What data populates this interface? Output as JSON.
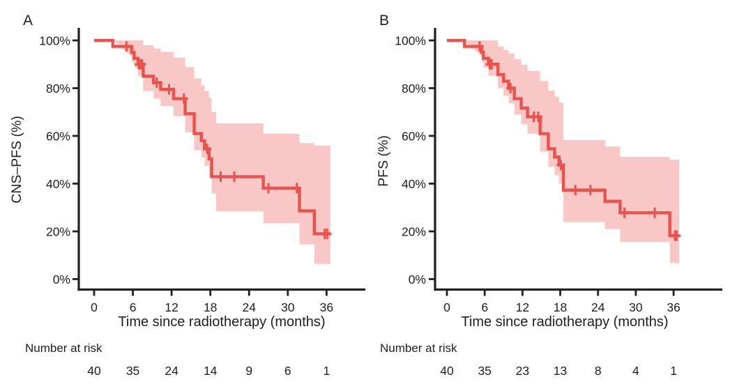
{
  "page": {
    "background": "#ffffff"
  },
  "colors": {
    "curve": "#E8534E",
    "band": "#F9C8C6",
    "axis": "#202020",
    "text": "#202020"
  },
  "panels": [
    {
      "label": "A",
      "y_axis_title": "CNS–PFS (%)",
      "x_axis_title": "Time since radiotherapy (months)",
      "risk_label": "Number at risk"
    },
    {
      "label": "B",
      "y_axis_title": "PFS (%)",
      "x_axis_title": "Time since radiotherapy (months)",
      "risk_label": "Number at risk"
    }
  ],
  "chart_data": [
    {
      "type": "line",
      "subtype": "kaplan-meier-step",
      "panel": "A",
      "title": "",
      "ylabel": "CNS–PFS (%)",
      "xlabel": "Time since radiotherapy (months)",
      "xlim": [
        0,
        42
      ],
      "ylim": [
        0,
        100
      ],
      "grid": false,
      "legend": "none",
      "x_ticks": [
        0,
        6,
        12,
        18,
        24,
        30,
        36
      ],
      "y_ticks": [
        {
          "value": 0,
          "label": "0%"
        },
        {
          "value": 20,
          "label": "20%"
        },
        {
          "value": 40,
          "label": "40%"
        },
        {
          "value": 60,
          "label": "60%"
        },
        {
          "value": 80,
          "label": "80%"
        },
        {
          "value": 100,
          "label": "100%"
        }
      ],
      "survival_steps": [
        [
          0,
          100
        ],
        [
          2.9,
          97.5
        ],
        [
          5.8,
          95
        ],
        [
          6.2,
          92.5
        ],
        [
          6.8,
          90
        ],
        [
          7.6,
          85
        ],
        [
          9.2,
          82.3
        ],
        [
          10.3,
          79.5
        ],
        [
          12.3,
          75.6
        ],
        [
          14.1,
          69.3
        ],
        [
          15.5,
          61
        ],
        [
          16.6,
          58
        ],
        [
          17.1,
          54.6
        ],
        [
          17.8,
          50.4
        ],
        [
          18.2,
          42.9
        ],
        [
          26.2,
          38.1
        ],
        [
          31.8,
          28.6
        ],
        [
          34.1,
          19
        ]
      ],
      "curve_end_time": 36.6,
      "censor_marks": [
        [
          5,
          97.5
        ],
        [
          6.9,
          90
        ],
        [
          7.15,
          90
        ],
        [
          7.4,
          90
        ],
        [
          9.7,
          82.3
        ],
        [
          11.6,
          79.5
        ],
        [
          13.9,
          75.6
        ],
        [
          17.5,
          54.6
        ],
        [
          19.6,
          42.9
        ],
        [
          21.7,
          42.9
        ],
        [
          27,
          38.1
        ],
        [
          31.4,
          38.1
        ],
        [
          35.7,
          19
        ],
        [
          36.1,
          19
        ]
      ],
      "confidence_band": [
        [
          2.9,
          93.4,
          100
        ],
        [
          5.8,
          91,
          100
        ],
        [
          6.2,
          88.6,
          100
        ],
        [
          6.8,
          85.2,
          100
        ],
        [
          7.6,
          78.8,
          98
        ],
        [
          9.2,
          75.6,
          96.6
        ],
        [
          10.3,
          72.5,
          95.2
        ],
        [
          12.3,
          68.3,
          92.8
        ],
        [
          14.1,
          61.5,
          88.8
        ],
        [
          15.5,
          54,
          84
        ],
        [
          16.6,
          51,
          81.2
        ],
        [
          17.1,
          47.5,
          78.8
        ],
        [
          17.8,
          43.2,
          75.8
        ],
        [
          18.2,
          35.8,
          70
        ],
        [
          18.9,
          28.4,
          65.3
        ],
        [
          26.2,
          23.4,
          60.9
        ],
        [
          31.8,
          14.6,
          57
        ],
        [
          34.1,
          6.4,
          56
        ]
      ],
      "number_at_risk": {
        "label": "Number at risk",
        "times": [
          0,
          6,
          12,
          18,
          24,
          30,
          36
        ],
        "counts": [
          40,
          35,
          24,
          14,
          9,
          6,
          1
        ]
      }
    },
    {
      "type": "line",
      "subtype": "kaplan-meier-step",
      "panel": "B",
      "title": "",
      "ylabel": "PFS (%)",
      "xlabel": "Time since radiotherapy (months)",
      "xlim": [
        0,
        42
      ],
      "ylim": [
        0,
        100
      ],
      "grid": false,
      "legend": "none",
      "x_ticks": [
        0,
        6,
        12,
        18,
        24,
        30,
        36
      ],
      "y_ticks": [
        {
          "value": 0,
          "label": "0%"
        },
        {
          "value": 20,
          "label": "20%"
        },
        {
          "value": 40,
          "label": "40%"
        },
        {
          "value": 60,
          "label": "60%"
        },
        {
          "value": 80,
          "label": "80%"
        },
        {
          "value": 100,
          "label": "100%"
        }
      ],
      "survival_steps": [
        [
          0,
          100
        ],
        [
          2.8,
          97.5
        ],
        [
          5.5,
          95
        ],
        [
          5.8,
          92.5
        ],
        [
          6.6,
          90
        ],
        [
          8.1,
          85.7
        ],
        [
          9,
          82.9
        ],
        [
          9.8,
          80
        ],
        [
          10.7,
          75.6
        ],
        [
          11.8,
          71.7
        ],
        [
          12.8,
          68
        ],
        [
          14.8,
          60.9
        ],
        [
          16.1,
          54.6
        ],
        [
          17.1,
          51.2
        ],
        [
          17.8,
          47.8
        ],
        [
          18.5,
          37.3
        ],
        [
          25.1,
          32.6
        ],
        [
          27.5,
          27.8
        ],
        [
          35.4,
          18.2
        ]
      ],
      "curve_end_time": 36.9,
      "censor_marks": [
        [
          5.2,
          97.5
        ],
        [
          6.8,
          90
        ],
        [
          7.1,
          90
        ],
        [
          10.1,
          80
        ],
        [
          13.8,
          68
        ],
        [
          14.5,
          68
        ],
        [
          18.1,
          47.8
        ],
        [
          20.4,
          37.3
        ],
        [
          22.8,
          37.3
        ],
        [
          28.2,
          27.8
        ],
        [
          33,
          27.8
        ],
        [
          36.2,
          18.2
        ],
        [
          36.5,
          18.2
        ]
      ],
      "confidence_band": [
        [
          2.8,
          93.4,
          100
        ],
        [
          5.5,
          91,
          100
        ],
        [
          5.8,
          88.6,
          100
        ],
        [
          6.6,
          85.2,
          100
        ],
        [
          8.1,
          80,
          97.5
        ],
        [
          9,
          76.8,
          96
        ],
        [
          9.8,
          73.6,
          94.6
        ],
        [
          10.7,
          68.9,
          92.2
        ],
        [
          11.8,
          64.8,
          89.8
        ],
        [
          12.8,
          60.9,
          87.2
        ],
        [
          14.8,
          53.5,
          83
        ],
        [
          16.1,
          47,
          79
        ],
        [
          17.1,
          43.5,
          76.5
        ],
        [
          17.8,
          40,
          74
        ],
        [
          18.5,
          23.9,
          58.3
        ],
        [
          25.1,
          21,
          55.6
        ],
        [
          27.5,
          15.6,
          51.2
        ],
        [
          35.4,
          6.8,
          50
        ]
      ],
      "number_at_risk": {
        "label": "Number at risk",
        "times": [
          0,
          6,
          12,
          18,
          24,
          30,
          36
        ],
        "counts": [
          40,
          35,
          23,
          13,
          8,
          4,
          1
        ]
      }
    }
  ]
}
